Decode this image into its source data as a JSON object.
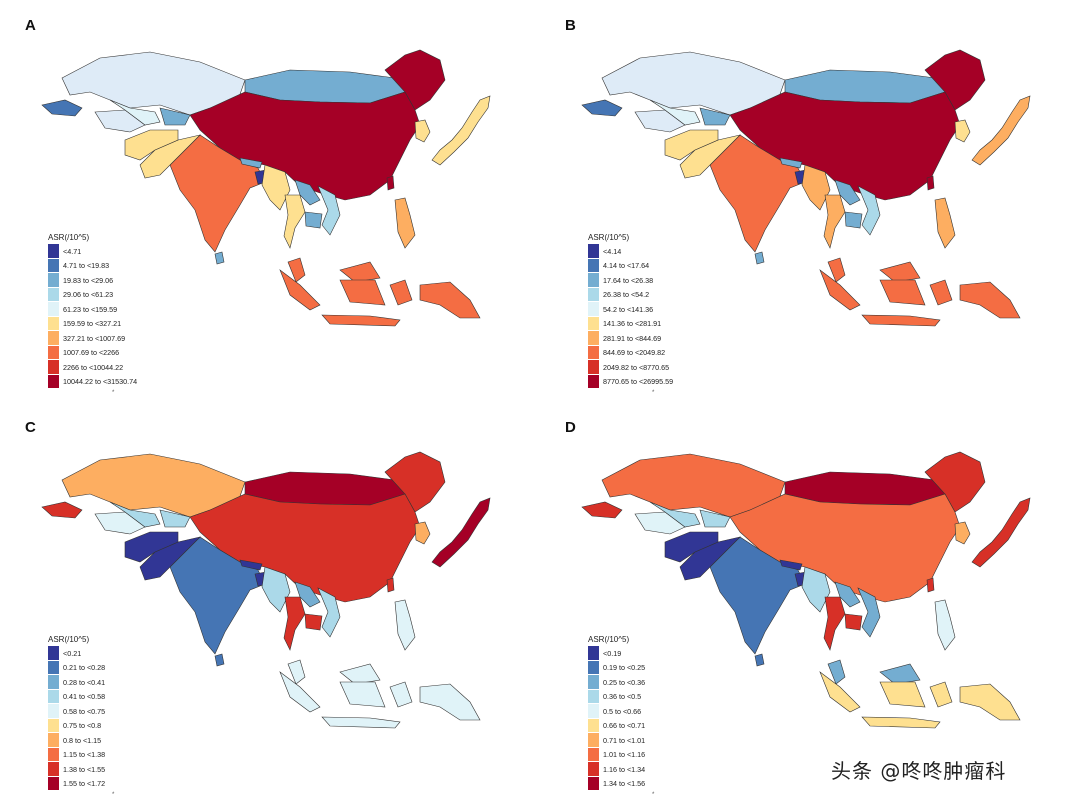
{
  "panels": [
    {
      "id": "a",
      "label": "A",
      "legend_title": "ASR(/10^5)",
      "legend_mark": "*",
      "legend": [
        "<4.71",
        "4.71 to <19.83",
        "19.83 to <29.06",
        "29.06 to <61.23",
        "61.23 to <159.59",
        "159.59 to <327.21",
        "327.21 to <1007.69",
        "1007.69 to <2266",
        "2266 to <10044.22",
        "10044.22 to <31530.74"
      ],
      "colors": {
        "kazakhstan": "#deebf7",
        "mongolia": "#74add1",
        "russia_east": "#a50026",
        "china": "#a50026",
        "japan": "#fee090",
        "korea": "#fee090",
        "india": "#f46d43",
        "pakistan": "#fee090",
        "afghanistan": "#fee090",
        "turkmenistan": "#deebf7",
        "uzbekistan": "#e0f3f8",
        "kyrgyz": "#74add1",
        "caucasus": "#4575b4",
        "nepal": "#74add1",
        "bangladesh": "#313695",
        "myanmar": "#fee090",
        "thailand": "#fee090",
        "laos": "#74add1",
        "vietnam": "#abd9e9",
        "cambodia": "#74add1",
        "malaysia": "#f46d43",
        "indonesia": "#f46d43",
        "philippines": "#fdae61",
        "png": "#f46d43",
        "srilanka": "#74add1",
        "taiwan": "#a50026"
      }
    },
    {
      "id": "b",
      "label": "B",
      "legend_title": "ASR(/10^5)",
      "legend_mark": "*",
      "legend": [
        "<4.14",
        "4.14 to <17.64",
        "17.64 to <26.38",
        "26.38 to <54.2",
        "54.2 to <141.36",
        "141.36 to <281.91",
        "281.91 to <844.69",
        "844.69 to <2049.82",
        "2049.82 to <8770.65",
        "8770.65 to <26995.59"
      ],
      "colors": {
        "kazakhstan": "#deebf7",
        "mongolia": "#74add1",
        "russia_east": "#a50026",
        "china": "#a50026",
        "japan": "#fdae61",
        "korea": "#fee090",
        "india": "#f46d43",
        "pakistan": "#fee090",
        "afghanistan": "#fee090",
        "turkmenistan": "#deebf7",
        "uzbekistan": "#e0f3f8",
        "kyrgyz": "#74add1",
        "caucasus": "#4575b4",
        "nepal": "#74add1",
        "bangladesh": "#313695",
        "myanmar": "#fdae61",
        "thailand": "#fdae61",
        "laos": "#74add1",
        "vietnam": "#abd9e9",
        "cambodia": "#74add1",
        "malaysia": "#f46d43",
        "indonesia": "#f46d43",
        "philippines": "#fdae61",
        "png": "#f46d43",
        "srilanka": "#74add1",
        "taiwan": "#a50026"
      }
    },
    {
      "id": "c",
      "label": "C",
      "legend_title": "ASR(/10^5)",
      "legend_mark": "*",
      "legend": [
        "<0.21",
        "0.21 to <0.28",
        "0.28 to <0.41",
        "0.41 to <0.58",
        "0.58 to <0.75",
        "0.75 to <0.8",
        "0.8 to <1.15",
        "1.15 to <1.38",
        "1.38 to <1.55",
        "1.55 to <1.72"
      ],
      "colors": {
        "kazakhstan": "#fdae61",
        "mongolia": "#a50026",
        "russia_east": "#d73027",
        "china": "#d73027",
        "japan": "#a50026",
        "korea": "#fdae61",
        "india": "#4575b4",
        "pakistan": "#313695",
        "afghanistan": "#313695",
        "turkmenistan": "#e0f3f8",
        "uzbekistan": "#abd9e9",
        "kyrgyz": "#abd9e9",
        "caucasus": "#d73027",
        "nepal": "#313695",
        "bangladesh": "#313695",
        "myanmar": "#abd9e9",
        "thailand": "#d73027",
        "laos": "#74add1",
        "vietnam": "#abd9e9",
        "cambodia": "#d73027",
        "malaysia": "#e0f3f8",
        "indonesia": "#e0f3f8",
        "philippines": "#e0f3f8",
        "png": "#e0f3f8",
        "srilanka": "#4575b4",
        "taiwan": "#d73027"
      }
    },
    {
      "id": "d",
      "label": "D",
      "legend_title": "ASR(/10^5)",
      "legend_mark": "*",
      "legend": [
        "<0.19",
        "0.19 to <0.25",
        "0.25 to <0.36",
        "0.36 to <0.5",
        "0.5 to <0.66",
        "0.66 to <0.71",
        "0.71 to <1.01",
        "1.01 to <1.16",
        "1.16 to <1.34",
        "1.34 to <1.56"
      ],
      "colors": {
        "kazakhstan": "#f46d43",
        "mongolia": "#a50026",
        "russia_east": "#d73027",
        "china": "#f46d43",
        "japan": "#d73027",
        "korea": "#fdae61",
        "india": "#4575b4",
        "pakistan": "#313695",
        "afghanistan": "#313695",
        "turkmenistan": "#e0f3f8",
        "uzbekistan": "#abd9e9",
        "kyrgyz": "#abd9e9",
        "caucasus": "#d73027",
        "nepal": "#313695",
        "bangladesh": "#313695",
        "myanmar": "#abd9e9",
        "thailand": "#d73027",
        "laos": "#74add1",
        "vietnam": "#74add1",
        "cambodia": "#d73027",
        "malaysia": "#74add1",
        "indonesia": "#fee090",
        "philippines": "#e0f3f8",
        "png": "#fee090",
        "srilanka": "#4575b4",
        "taiwan": "#d73027"
      }
    }
  ],
  "legend_colors": [
    "#313695",
    "#4575b4",
    "#74add1",
    "#abd9e9",
    "#e0f3f8",
    "#fee090",
    "#fdae61",
    "#f46d43",
    "#d73027",
    "#a50026"
  ],
  "watermark": "头条 @咚咚肿瘤科"
}
